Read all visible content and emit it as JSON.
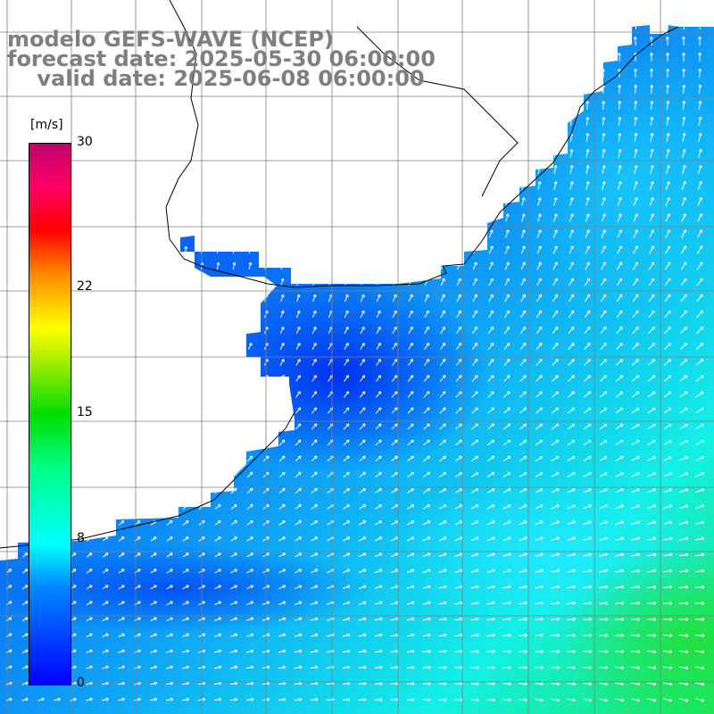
{
  "title": {
    "line1": "modelo GEFS-WAVE (NCEP)",
    "line2": "forecast date: 2025-05-30 06:00:00",
    "line3": "    valid date: 2025-06-08 06:00:00"
  },
  "colorbar": {
    "unit": "[m/s]",
    "ticks": [
      "30",
      "22",
      "15",
      "8",
      "0"
    ],
    "tick_values": [
      30,
      22,
      15,
      8,
      0
    ],
    "min": 0,
    "max": 30,
    "palette": [
      "#0000ff",
      "#0088ff",
      "#00ffff",
      "#00ff88",
      "#00dd00",
      "#ffff00",
      "#ff8800",
      "#ff0000",
      "#ff0066",
      "#c0006a"
    ]
  },
  "colors": {
    "land": "#ffffff",
    "coastline": "#000000",
    "grid": "#7f7f7f",
    "arrows": "#ffffff",
    "title_text": "#7f7f7f"
  },
  "map": {
    "field": "wind speed",
    "vector_field": "wind direction arrows"
  }
}
